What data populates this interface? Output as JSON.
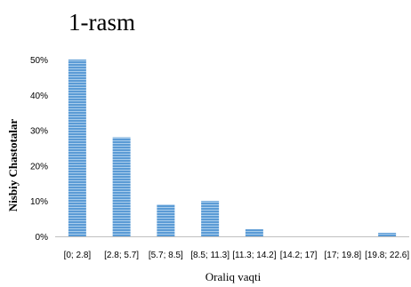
{
  "figure_label": "1-rasm",
  "chart_data": {
    "type": "bar",
    "title": "",
    "xlabel": "Oraliq vaqti",
    "ylabel": "Nisbiy Chastotalar",
    "categories": [
      "[0; 2.8]",
      "[2.8; 5.7]",
      "[5.7; 8.5]",
      "[8.5; 11.3]",
      "[11.3; 14.2]",
      "[14.2; 17]",
      "[17; 19.8]",
      "[19.8; 22.6]"
    ],
    "values": [
      50,
      28,
      9,
      10,
      2,
      0,
      0,
      1
    ],
    "yticks": [
      "0%",
      "10%",
      "20%",
      "30%",
      "40%",
      "50%"
    ],
    "ylim": [
      0,
      50
    ],
    "grid": false,
    "legend": "none",
    "bar_color": "#5b9bd5"
  }
}
